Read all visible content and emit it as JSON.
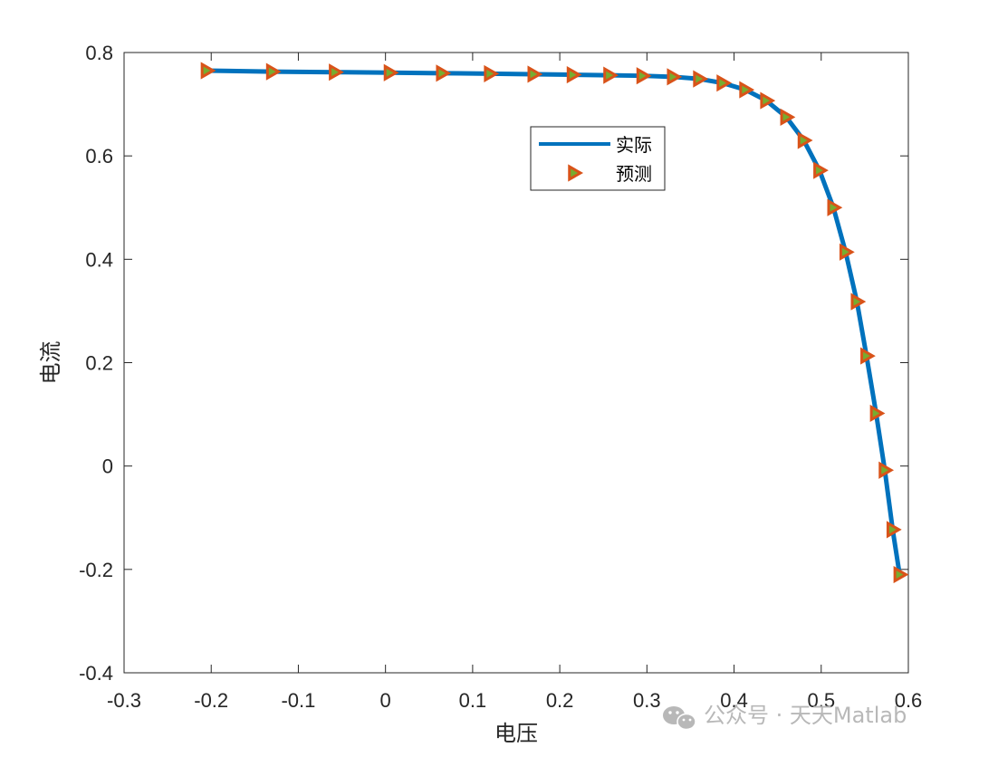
{
  "chart_data": {
    "type": "line",
    "xlabel": "电压",
    "ylabel": "电流",
    "xlim": [
      -0.3,
      0.6
    ],
    "ylim": [
      -0.4,
      0.8
    ],
    "xticks": [
      "-0.3",
      "-0.2",
      "-0.1",
      "0",
      "0.1",
      "0.2",
      "0.3",
      "0.4",
      "0.5",
      "0.6"
    ],
    "yticks": [
      "-0.4",
      "-0.2",
      "0",
      "0.2",
      "0.4",
      "0.6",
      "0.8"
    ],
    "grid": false,
    "box": true,
    "legend_position": "top-center-right",
    "series": [
      {
        "name": "实际",
        "style": "line",
        "color": "#0072bd",
        "x": [
          -0.205,
          -0.13,
          -0.058,
          0.005,
          0.065,
          0.12,
          0.17,
          0.215,
          0.257,
          0.295,
          0.33,
          0.36,
          0.387,
          0.413,
          0.437,
          0.46,
          0.48,
          0.498,
          0.514,
          0.528,
          0.541,
          0.552,
          0.563,
          0.573,
          0.582,
          0.59
        ],
        "y": [
          0.765,
          0.763,
          0.762,
          0.761,
          0.76,
          0.759,
          0.758,
          0.757,
          0.756,
          0.755,
          0.753,
          0.749,
          0.741,
          0.728,
          0.707,
          0.675,
          0.63,
          0.572,
          0.5,
          0.414,
          0.318,
          0.213,
          0.102,
          -0.008,
          -0.123,
          -0.21
        ]
      },
      {
        "name": "预测",
        "style": "marker",
        "marker": "triangle-right",
        "edge_color": "#d95319",
        "face_color": "#77ac30",
        "x": [
          -0.205,
          -0.13,
          -0.058,
          0.005,
          0.065,
          0.12,
          0.17,
          0.215,
          0.257,
          0.295,
          0.33,
          0.36,
          0.387,
          0.413,
          0.437,
          0.46,
          0.48,
          0.498,
          0.514,
          0.528,
          0.541,
          0.552,
          0.563,
          0.573,
          0.582,
          0.59
        ],
        "y": [
          0.765,
          0.763,
          0.762,
          0.761,
          0.76,
          0.759,
          0.758,
          0.757,
          0.756,
          0.755,
          0.753,
          0.749,
          0.741,
          0.728,
          0.707,
          0.675,
          0.63,
          0.572,
          0.5,
          0.414,
          0.318,
          0.213,
          0.102,
          -0.008,
          -0.123,
          -0.21
        ]
      }
    ]
  },
  "watermark": {
    "text": "公众号 · 天天Matlab",
    "icon": "wechat-icon"
  }
}
